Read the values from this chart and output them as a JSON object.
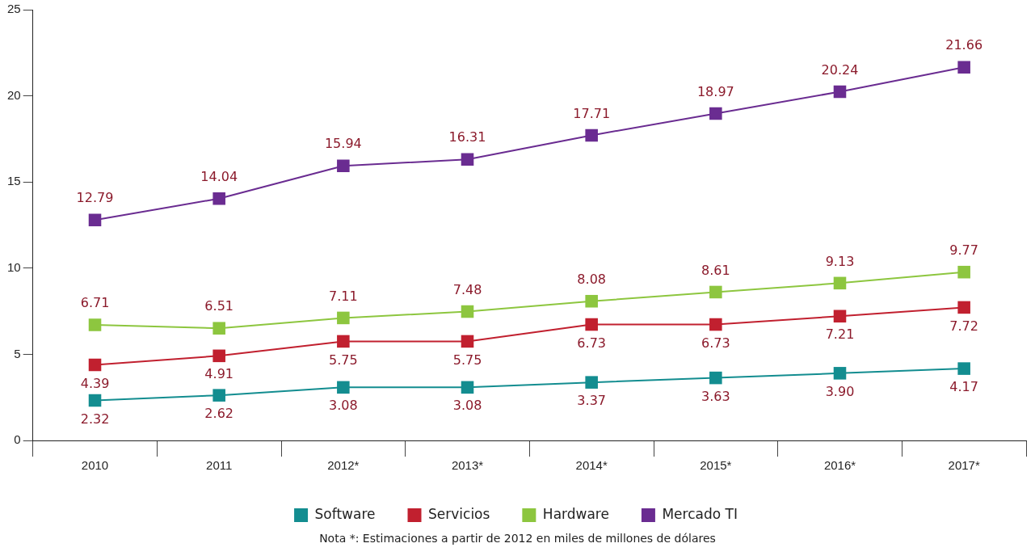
{
  "chart_data": {
    "type": "line",
    "categories": [
      "2010",
      "2011",
      "2012*",
      "2013*",
      "2014*",
      "2015*",
      "2016*",
      "2017*"
    ],
    "ylim": [
      0,
      25
    ],
    "yticks": [
      0,
      5,
      10,
      15,
      20,
      25
    ],
    "grid": false,
    "legend": "bottom",
    "marker": "square",
    "line_style": "solid",
    "series": [
      {
        "name": "Software",
        "color": "#138d90",
        "values": [
          2.32,
          2.62,
          3.08,
          3.08,
          3.37,
          3.63,
          3.9,
          4.17
        ],
        "value_labels": [
          "2.32",
          "2.62",
          "3.08",
          "3.08",
          "3.37",
          "3.63",
          "3.90",
          "4.17"
        ]
      },
      {
        "name": "Servicios",
        "color": "#c1202f",
        "values": [
          4.39,
          4.91,
          5.75,
          5.75,
          6.73,
          6.73,
          7.21,
          7.72
        ],
        "value_labels": [
          "4.39",
          "4.91",
          "5.75",
          "5.75",
          "6.73",
          "6.73",
          "7.21",
          "7.72"
        ]
      },
      {
        "name": "Hardware",
        "color": "#8dc63f",
        "values": [
          6.71,
          6.51,
          7.11,
          7.48,
          8.08,
          8.61,
          9.13,
          9.77
        ],
        "value_labels": [
          "6.71",
          "6.51",
          "7.11",
          "7.48",
          "8.08",
          "8.61",
          "9.13",
          "9.77"
        ]
      },
      {
        "name": "Mercado TI",
        "color": "#6a2c91",
        "values": [
          12.79,
          14.04,
          15.94,
          16.31,
          17.71,
          18.97,
          20.24,
          21.66
        ],
        "value_labels": [
          "12.79",
          "14.04",
          "15.94",
          "16.31",
          "17.71",
          "18.97",
          "20.24",
          "21.66"
        ]
      }
    ],
    "annotations": [
      "Nota *: Estimaciones a partir de 2012 en miles de millones de dólares"
    ]
  }
}
